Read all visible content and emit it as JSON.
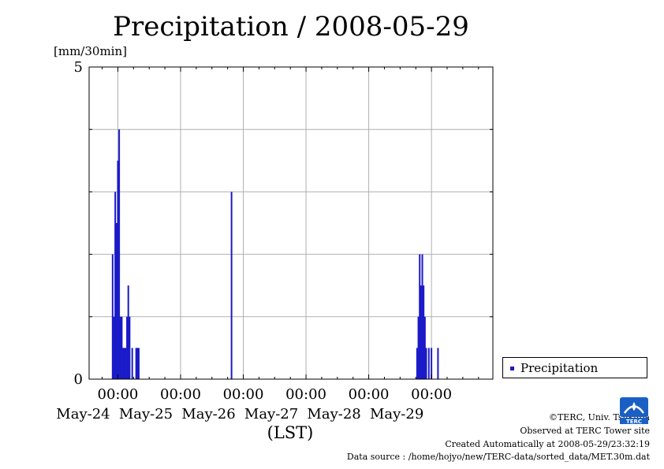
{
  "chart_data": {
    "type": "bar",
    "title": "Precipitation / 2008-05-29",
    "ylabel": "[mm/30min]",
    "xlabel": "(LST)",
    "ylim": [
      0,
      5
    ],
    "yticks": [
      "0",
      "5"
    ],
    "x_range": [
      "2008-05-23 13:00",
      "2008-05-29 23:30"
    ],
    "xticks": [
      {
        "time": "00:00",
        "date": "May-24"
      },
      {
        "time": "00:00",
        "date": "May-25"
      },
      {
        "time": "00:00",
        "date": "May-26"
      },
      {
        "time": "00:00",
        "date": "May-27"
      },
      {
        "time": "00:00",
        "date": "May-28"
      },
      {
        "time": "00:00",
        "date": "May-29"
      }
    ],
    "grid": true,
    "legend": "bottom-right",
    "series": [
      {
        "name": "Precipitation",
        "color": "#1a1ac8",
        "points": [
          {
            "x": "2008-05-23 22:00",
            "y": 2.0
          },
          {
            "x": "2008-05-23 22:30",
            "y": 1.0
          },
          {
            "x": "2008-05-23 23:00",
            "y": 3.0
          },
          {
            "x": "2008-05-23 23:30",
            "y": 2.5
          },
          {
            "x": "2008-05-24 00:00",
            "y": 3.5
          },
          {
            "x": "2008-05-24 00:30",
            "y": 4.0
          },
          {
            "x": "2008-05-24 01:00",
            "y": 1.0
          },
          {
            "x": "2008-05-24 01:30",
            "y": 1.0
          },
          {
            "x": "2008-05-24 02:00",
            "y": 0.5
          },
          {
            "x": "2008-05-24 02:30",
            "y": 0.5
          },
          {
            "x": "2008-05-24 03:00",
            "y": 0.5
          },
          {
            "x": "2008-05-24 03:30",
            "y": 1.0
          },
          {
            "x": "2008-05-24 04:00",
            "y": 1.5
          },
          {
            "x": "2008-05-24 04:30",
            "y": 1.0
          },
          {
            "x": "2008-05-24 05:30",
            "y": 0.5
          },
          {
            "x": "2008-05-24 07:00",
            "y": 0.5
          },
          {
            "x": "2008-05-24 07:30",
            "y": 0.5
          },
          {
            "x": "2008-05-24 08:00",
            "y": 0.5
          },
          {
            "x": "2008-05-25 19:30",
            "y": 3.0
          },
          {
            "x": "2008-05-28 18:30",
            "y": 0.5
          },
          {
            "x": "2008-05-28 19:00",
            "y": 1.0
          },
          {
            "x": "2008-05-28 19:30",
            "y": 2.0
          },
          {
            "x": "2008-05-28 20:00",
            "y": 1.5
          },
          {
            "x": "2008-05-28 20:30",
            "y": 2.0
          },
          {
            "x": "2008-05-28 21:00",
            "y": 1.5
          },
          {
            "x": "2008-05-28 21:30",
            "y": 1.0
          },
          {
            "x": "2008-05-28 22:00",
            "y": 0.5
          },
          {
            "x": "2008-05-28 23:00",
            "y": 0.5
          },
          {
            "x": "2008-05-29 00:00",
            "y": 0.5
          },
          {
            "x": "2008-05-29 02:30",
            "y": 0.5
          }
        ]
      }
    ]
  },
  "footer": {
    "copyright": "©TERC, Univ. Tsukuba",
    "observed": "Observed at TERC Tower site",
    "created": "Created Automatically at 2008-05-29/23:32:19",
    "source": "Data source : /home/hojyo/new/TERC-data/sorted_data/MET.30m.dat"
  },
  "logo": {
    "text": "TERC",
    "color": "#1b5fc4"
  }
}
